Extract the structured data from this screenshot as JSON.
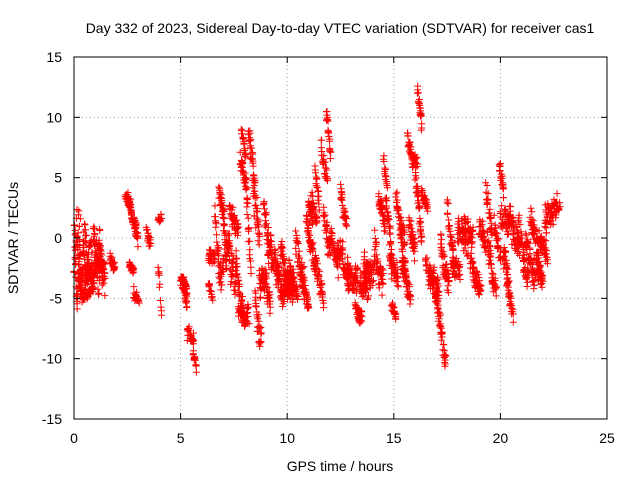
{
  "chart_data": {
    "type": "scatter",
    "title": "Day 332 of 2023, Sidereal Day-to-day VTEC variation (SDTVAR) for receiver cas1",
    "xlabel": "GPS time / hours",
    "ylabel": "SDTVAR / TECUs",
    "xlim": [
      0,
      25
    ],
    "ylim": [
      -15,
      15
    ],
    "x_ticks": [
      0,
      5,
      10,
      15,
      20,
      25
    ],
    "y_ticks": [
      -15,
      -10,
      -5,
      0,
      5,
      10,
      15
    ],
    "x_tick_labels": [
      "0",
      "5",
      "10",
      "15",
      "20",
      "25"
    ],
    "y_tick_labels": [
      "-15",
      "-10",
      "-5",
      "0",
      "5",
      "10",
      "15"
    ],
    "grid": true,
    "marker": "+",
    "color": "#ff0000",
    "series": [
      {
        "name": "cas1",
        "segments": [
          [
            0.0,
            0.05,
            -3.0,
            -0.8,
            3.0,
            0.1,
            0.2,
            0.2
          ],
          [
            0.05,
            0.3,
            0.3,
            1.3,
            1.5,
            0.1,
            0.3,
            0.3
          ],
          [
            0.05,
            0.6,
            -4.0,
            -1.5,
            2.0,
            0.2,
            0.5,
            0.5
          ],
          [
            0.2,
            0.8,
            -4.5,
            -2.0,
            1.5,
            0.6,
            0.1,
            0.5
          ],
          [
            0.4,
            0.7,
            -3.5,
            0.2,
            3.0,
            0.4,
            0.3,
            0.8
          ],
          [
            0.55,
            1.0,
            -3.2,
            -2.0,
            0.3,
            1.3,
            0.2,
            0.8
          ],
          [
            0.6,
            0.9,
            -4.8,
            -4.2,
            0.0,
            0.0,
            0.0,
            0.3
          ],
          [
            0.8,
            1.4,
            -3.0,
            -2.0,
            1.0,
            0.2,
            0.5,
            1.2
          ],
          [
            0.9,
            1.2,
            -1.5,
            0.5,
            2.0,
            0.4,
            0.2,
            0.8
          ],
          [
            1.1,
            1.45,
            -2.5,
            -4.6,
            2.0,
            1.0,
            0.3,
            1.0
          ],
          [
            1.7,
            1.9,
            -1.8,
            -2.5,
            0.0,
            0.0,
            0.2,
            0.4
          ],
          [
            2.4,
            2.7,
            3.3,
            2.0,
            0.5,
            0.6,
            0.2,
            0.3
          ],
          [
            2.5,
            2.9,
            2.5,
            1.5,
            0.8,
            0.6,
            0.3,
            0.4
          ],
          [
            2.6,
            2.8,
            -2.2,
            -2.8,
            0.0,
            0.0,
            0.2,
            0.3
          ],
          [
            2.8,
            3.0,
            1.6,
            -0.2,
            0.0,
            0.0,
            0.3,
            0.3
          ],
          [
            2.8,
            3.05,
            -4.5,
            -5.5,
            0.0,
            0.0,
            0.3,
            0.3
          ],
          [
            3.4,
            3.6,
            0.5,
            -0.5,
            0.0,
            0.0,
            0.2,
            0.5
          ],
          [
            3.95,
            4.1,
            -2.2,
            -6.5,
            0.0,
            0.0,
            0.2,
            0.6
          ],
          [
            3.95,
            4.1,
            1.5,
            1.7,
            0.0,
            0.0,
            0.1,
            0.3
          ],
          [
            5.0,
            5.3,
            -3.7,
            -4.2,
            0.5,
            0.5,
            0.3,
            0.3
          ],
          [
            5.05,
            5.3,
            -4.0,
            -5.0,
            0.5,
            0.8,
            0.3,
            0.4
          ],
          [
            5.3,
            5.6,
            -7.5,
            -9.0,
            0.4,
            0.6,
            0.3,
            0.5
          ],
          [
            5.6,
            5.75,
            -9.5,
            -11.0,
            0.0,
            0.0,
            0.3,
            0.5
          ],
          [
            6.3,
            6.5,
            -3.8,
            -5.0,
            0.0,
            0.0,
            0.1,
            0.2
          ],
          [
            6.3,
            6.6,
            -1.0,
            -2.3,
            0.5,
            0.8,
            0.3,
            0.5
          ],
          [
            6.6,
            7.0,
            0.0,
            -2.5,
            1.5,
            0.5,
            0.5,
            0.9
          ],
          [
            6.8,
            7.0,
            4.0,
            2.0,
            0.0,
            0.0,
            0.3,
            0.5
          ],
          [
            7.0,
            7.3,
            2.5,
            -2.0,
            1.5,
            0.4,
            0.8,
            0.8
          ],
          [
            7.1,
            7.6,
            -0.5,
            -3.5,
            1.0,
            0.2,
            0.8,
            1.0
          ],
          [
            7.3,
            7.7,
            2.0,
            1.0,
            0.5,
            1.0,
            0.5,
            0.6
          ],
          [
            7.6,
            7.9,
            -3.0,
            -6.0,
            1.0,
            0.5,
            0.5,
            0.8
          ],
          [
            7.7,
            8.2,
            -5.5,
            -6.8,
            0.5,
            0.3,
            0.4,
            0.6
          ],
          [
            7.85,
            8.05,
            9.2,
            7.0,
            0.0,
            0.0,
            0.3,
            0.5
          ],
          [
            7.8,
            8.1,
            6.5,
            4.0,
            0.0,
            0.0,
            0.4,
            0.6
          ],
          [
            8.1,
            8.3,
            2.0,
            -1.0,
            1.0,
            0.4,
            0.6,
            0.8
          ],
          [
            8.2,
            8.5,
            8.0,
            4.0,
            0.5,
            1.0,
            0.5,
            0.8
          ],
          [
            8.4,
            8.7,
            5.0,
            -2.0,
            1.2,
            0.5,
            0.8,
            1.0
          ],
          [
            8.5,
            8.8,
            -5.0,
            -8.5,
            0.5,
            1.5,
            0.5,
            0.9
          ],
          [
            8.7,
            9.2,
            -3.0,
            -6.0,
            1.0,
            0.8,
            0.6,
            1.0
          ],
          [
            8.9,
            9.3,
            2.0,
            -1.0,
            1.0,
            1.2,
            0.5,
            0.8
          ],
          [
            9.1,
            9.6,
            -1.0,
            -4.0,
            1.0,
            1.5,
            0.6,
            1.0
          ],
          [
            9.5,
            9.9,
            -2.0,
            -4.5,
            1.0,
            1.0,
            0.5,
            0.8
          ],
          [
            9.7,
            10.1,
            -1.2,
            -3.0,
            1.0,
            1.5,
            0.4,
            0.8
          ],
          [
            9.9,
            10.3,
            -3.5,
            -5.5,
            0.8,
            1.0,
            0.4,
            0.8
          ],
          [
            10.1,
            10.5,
            -2.5,
            -4.0,
            0.5,
            1.2,
            0.3,
            0.6
          ],
          [
            10.4,
            10.8,
            -0.5,
            -3.0,
            0.5,
            1.0,
            0.5,
            0.9
          ],
          [
            10.6,
            11.0,
            -3.5,
            -5.0,
            0.5,
            0.8,
            0.4,
            0.6
          ],
          [
            10.9,
            11.3,
            0.5,
            -2.5,
            1.0,
            1.5,
            0.4,
            0.8
          ],
          [
            11.0,
            11.2,
            3.0,
            1.5,
            0.0,
            0.0,
            0.2,
            0.4
          ],
          [
            11.1,
            11.4,
            3.0,
            1.0,
            0.5,
            1.0,
            0.3,
            0.5
          ],
          [
            11.3,
            11.5,
            5.5,
            3.0,
            0.0,
            0.0,
            0.4,
            0.6
          ],
          [
            11.3,
            11.7,
            -2.5,
            -4.5,
            0.6,
            1.0,
            0.4,
            0.6
          ],
          [
            11.6,
            11.9,
            8.0,
            5.0,
            0.8,
            1.5,
            0.4,
            0.7
          ],
          [
            11.7,
            12.0,
            3.0,
            -1.0,
            1.0,
            1.5,
            0.6,
            1.0
          ],
          [
            11.85,
            12.05,
            10.2,
            7.0,
            0.0,
            0.0,
            0.3,
            0.6
          ],
          [
            12.0,
            12.4,
            0.0,
            -3.5,
            1.0,
            1.0,
            0.5,
            0.8
          ],
          [
            12.3,
            12.6,
            -2.0,
            -1.0,
            0.5,
            1.2,
            0.4,
            0.7
          ],
          [
            12.5,
            12.8,
            5.0,
            1.0,
            0.8,
            0.8,
            0.3,
            0.6
          ],
          [
            12.6,
            12.9,
            -2.5,
            -4.5,
            0.5,
            0.9,
            0.3,
            0.6
          ],
          [
            12.8,
            13.3,
            -1.5,
            -4.0,
            1.0,
            1.2,
            0.5,
            0.8
          ],
          [
            13.2,
            13.5,
            -5.5,
            -6.2,
            0.4,
            0.8,
            0.3,
            0.5
          ],
          [
            13.4,
            13.8,
            -3.0,
            -5.0,
            0.6,
            0.8,
            0.4,
            0.7
          ],
          [
            13.6,
            14.1,
            -1.5,
            -3.0,
            0.8,
            1.0,
            0.5,
            0.8
          ],
          [
            14.1,
            14.5,
            0.5,
            -4.5,
            1.0,
            0.6,
            0.5,
            0.9
          ],
          [
            14.3,
            14.6,
            3.0,
            1.0,
            0.5,
            1.0,
            0.3,
            0.5
          ],
          [
            14.5,
            14.7,
            6.5,
            4.0,
            0.0,
            0.0,
            0.3,
            0.6
          ],
          [
            14.6,
            14.9,
            2.5,
            -1.5,
            0.8,
            1.2,
            0.4,
            0.7
          ],
          [
            14.8,
            15.2,
            -1.0,
            -4.0,
            0.8,
            1.0,
            0.5,
            0.8
          ],
          [
            14.9,
            15.1,
            -5.5,
            -6.5,
            0.0,
            0.0,
            0.2,
            0.3
          ],
          [
            15.1,
            15.5,
            4.0,
            0.5,
            1.0,
            1.2,
            0.4,
            0.7
          ],
          [
            15.3,
            15.6,
            -0.5,
            -3.0,
            0.8,
            1.0,
            0.4,
            0.7
          ],
          [
            15.4,
            15.8,
            -3.0,
            -4.5,
            0.5,
            0.8,
            0.3,
            0.6
          ],
          [
            15.65,
            16.1,
            8.0,
            6.0,
            0.5,
            0.5,
            0.3,
            0.5
          ],
          [
            15.7,
            16.0,
            2.0,
            -1.0,
            0.8,
            1.0,
            0.5,
            0.8
          ],
          [
            16.0,
            16.3,
            5.0,
            -0.5,
            0.8,
            1.0,
            0.5,
            0.8
          ],
          [
            16.1,
            16.3,
            12.6,
            9.5,
            0.0,
            0.0,
            0.3,
            0.6
          ],
          [
            16.3,
            16.6,
            3.8,
            2.5,
            0.0,
            0.0,
            0.2,
            0.4
          ],
          [
            16.5,
            16.9,
            -1.0,
            -4.0,
            1.0,
            0.8,
            0.5,
            0.8
          ],
          [
            16.7,
            17.1,
            -2.5,
            -4.5,
            0.5,
            1.0,
            0.4,
            0.7
          ],
          [
            16.95,
            17.45,
            -5.5,
            -9.5,
            1.0,
            0.8,
            0.4,
            0.6
          ],
          [
            17.2,
            17.6,
            -1.0,
            -3.0,
            1.0,
            1.5,
            0.5,
            0.8
          ],
          [
            17.5,
            17.8,
            2.5,
            -1.0,
            0.5,
            1.0,
            0.4,
            0.7
          ],
          [
            17.7,
            18.1,
            -1.5,
            -3.0,
            0.8,
            1.0,
            0.4,
            0.7
          ],
          [
            18.0,
            18.5,
            0.5,
            -2.0,
            1.0,
            1.5,
            0.5,
            0.8
          ],
          [
            18.3,
            18.7,
            0.0,
            1.0,
            1.0,
            1.0,
            0.4,
            0.7
          ],
          [
            18.6,
            19.1,
            -2.0,
            -3.5,
            0.8,
            1.2,
            0.5,
            0.8
          ],
          [
            19.0,
            19.3,
            1.0,
            -1.5,
            1.0,
            1.0,
            0.4,
            0.7
          ],
          [
            19.3,
            19.6,
            4.5,
            0.5,
            0.0,
            0.0,
            0.4,
            0.7
          ],
          [
            19.4,
            19.8,
            -1.0,
            -3.5,
            1.0,
            1.0,
            0.5,
            0.8
          ],
          [
            19.7,
            20.0,
            2.0,
            -1.0,
            1.0,
            1.0,
            0.5,
            0.8
          ],
          [
            19.95,
            20.15,
            6.0,
            4.0,
            0.0,
            0.0,
            0.3,
            0.5
          ],
          [
            20.0,
            20.4,
            3.0,
            1.0,
            0.8,
            1.2,
            0.5,
            0.8
          ],
          [
            20.1,
            20.4,
            -1.5,
            -4.5,
            0.8,
            1.0,
            0.5,
            0.8
          ],
          [
            20.3,
            20.6,
            -4.0,
            -6.5,
            0.5,
            1.0,
            0.3,
            0.5
          ],
          [
            20.4,
            20.9,
            2.5,
            0.0,
            1.0,
            1.5,
            0.6,
            1.0
          ],
          [
            20.8,
            21.3,
            0.5,
            -2.5,
            1.0,
            1.2,
            0.5,
            0.8
          ],
          [
            21.2,
            21.6,
            -1.0,
            -3.5,
            0.8,
            1.0,
            0.4,
            0.7
          ],
          [
            21.4,
            21.8,
            1.5,
            -0.5,
            0.8,
            1.0,
            0.4,
            0.7
          ],
          [
            21.6,
            22.0,
            -2.5,
            -4.0,
            0.5,
            0.8,
            0.3,
            0.6
          ],
          [
            21.8,
            22.2,
            0.5,
            -2.0,
            0.8,
            1.0,
            0.4,
            0.7
          ],
          [
            22.1,
            22.8,
            2.5,
            2.0,
            0.8,
            1.5,
            0.5,
            0.8
          ]
        ]
      }
    ]
  }
}
